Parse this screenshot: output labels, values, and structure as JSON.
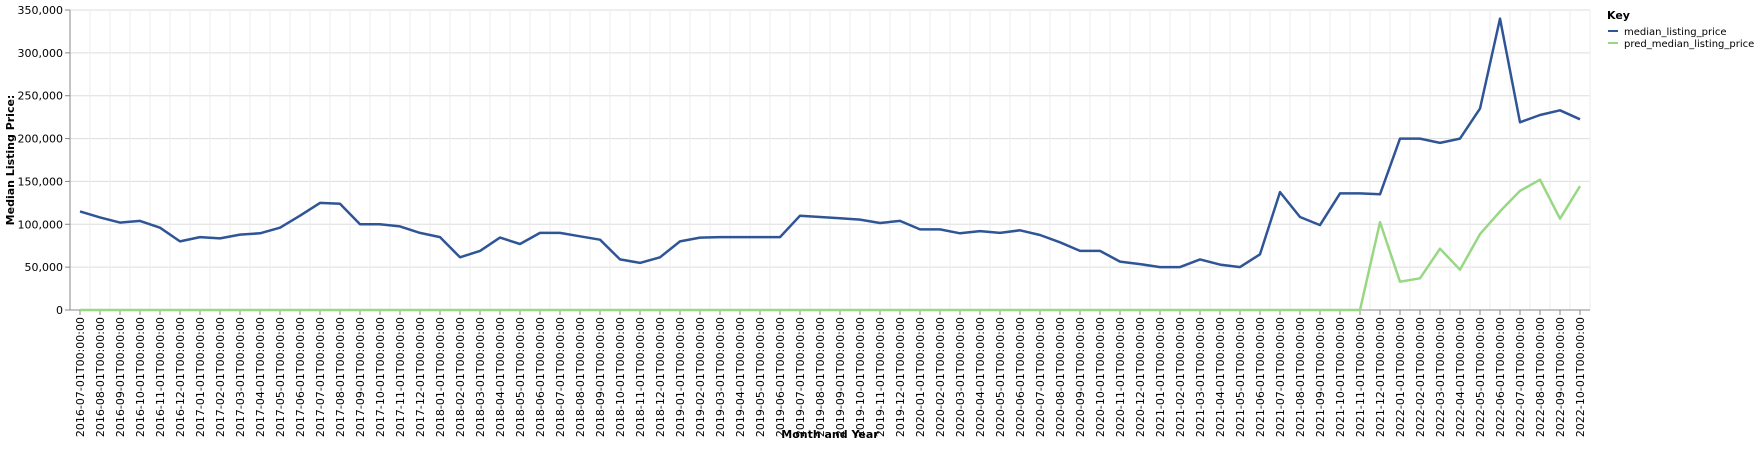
{
  "chart_data": {
    "type": "line",
    "xlabel": "Month and Year",
    "ylabel": "Median Listing Price:",
    "ylim": [
      0,
      350000
    ],
    "yticks": [
      "0",
      "50,000",
      "100,000",
      "150,000",
      "200,000",
      "250,000",
      "300,000",
      "350,000"
    ],
    "grid": true,
    "legend": {
      "title": "Key",
      "position": "top-right"
    },
    "x": [
      "2016-07-01T00:00:00",
      "2016-08-01T00:00:00",
      "2016-09-01T00:00:00",
      "2016-10-01T00:00:00",
      "2016-11-01T00:00:00",
      "2016-12-01T00:00:00",
      "2017-01-01T00:00:00",
      "2017-02-01T00:00:00",
      "2017-03-01T00:00:00",
      "2017-04-01T00:00:00",
      "2017-05-01T00:00:00",
      "2017-06-01T00:00:00",
      "2017-07-01T00:00:00",
      "2017-08-01T00:00:00",
      "2017-09-01T00:00:00",
      "2017-10-01T00:00:00",
      "2017-11-01T00:00:00",
      "2017-12-01T00:00:00",
      "2018-01-01T00:00:00",
      "2018-02-01T00:00:00",
      "2018-03-01T00:00:00",
      "2018-04-01T00:00:00",
      "2018-05-01T00:00:00",
      "2018-06-01T00:00:00",
      "2018-07-01T00:00:00",
      "2018-08-01T00:00:00",
      "2018-09-01T00:00:00",
      "2018-10-01T00:00:00",
      "2018-11-01T00:00:00",
      "2018-12-01T00:00:00",
      "2019-01-01T00:00:00",
      "2019-02-01T00:00:00",
      "2019-03-01T00:00:00",
      "2019-04-01T00:00:00",
      "2019-05-01T00:00:00",
      "2019-06-01T00:00:00",
      "2019-07-01T00:00:00",
      "2019-08-01T00:00:00",
      "2019-09-01T00:00:00",
      "2019-10-01T00:00:00",
      "2019-11-01T00:00:00",
      "2019-12-01T00:00:00",
      "2020-01-01T00:00:00",
      "2020-02-01T00:00:00",
      "2020-03-01T00:00:00",
      "2020-04-01T00:00:00",
      "2020-05-01T00:00:00",
      "2020-06-01T00:00:00",
      "2020-07-01T00:00:00",
      "2020-08-01T00:00:00",
      "2020-09-01T00:00:00",
      "2020-10-01T00:00:00",
      "2020-11-01T00:00:00",
      "2020-12-01T00:00:00",
      "2021-01-01T00:00:00",
      "2021-02-01T00:00:00",
      "2021-03-01T00:00:00",
      "2021-04-01T00:00:00",
      "2021-05-01T00:00:00",
      "2021-06-01T00:00:00",
      "2021-07-01T00:00:00",
      "2021-08-01T00:00:00",
      "2021-09-01T00:00:00",
      "2021-10-01T00:00:00",
      "2021-11-01T00:00:00",
      "2021-12-01T00:00:00",
      "2022-01-01T00:00:00",
      "2022-02-01T00:00:00",
      "2022-03-01T00:00:00",
      "2022-04-01T00:00:00",
      "2022-05-01T00:00:00",
      "2022-06-01T00:00:00",
      "2022-07-01T00:00:00",
      "2022-08-01T00:00:00",
      "2022-09-01T00:00:00",
      "2022-10-01T00:00:00"
    ],
    "series": [
      {
        "name": "median_listing_price",
        "color": "#2f5597",
        "values": [
          115000,
          108000,
          102000,
          104000,
          96000,
          80000,
          85000,
          83500,
          88000,
          89500,
          96000,
          110000,
          125000,
          124000,
          100000,
          100000,
          97500,
          90000,
          85000,
          61500,
          69000,
          84500,
          77000,
          90000,
          90000,
          86000,
          82000,
          59000,
          55000,
          61500,
          80000,
          84500,
          85000,
          85000,
          85000,
          85000,
          110000,
          108500,
          107000,
          105500,
          101500,
          104000,
          94000,
          94000,
          89500,
          92000,
          89900,
          93000,
          87500,
          79000,
          69000,
          69000,
          56500,
          53500,
          50000,
          50000,
          59000,
          53000,
          50000,
          65000,
          137500,
          108500,
          99000,
          136000,
          136000,
          135000,
          200000,
          200000,
          195000,
          200000,
          235000,
          340000,
          219000,
          227500,
          233000,
          222500
        ]
      },
      {
        "name": "pred_median_listing_price",
        "color": "#98d884",
        "values": [
          0,
          0,
          0,
          0,
          0,
          0,
          0,
          0,
          0,
          0,
          0,
          0,
          0,
          0,
          0,
          0,
          0,
          0,
          0,
          0,
          0,
          0,
          0,
          0,
          0,
          0,
          0,
          0,
          0,
          0,
          0,
          0,
          0,
          0,
          0,
          0,
          0,
          0,
          0,
          0,
          0,
          0,
          0,
          0,
          0,
          0,
          0,
          0,
          0,
          0,
          0,
          0,
          0,
          0,
          0,
          0,
          0,
          0,
          0,
          0,
          0,
          0,
          0,
          0,
          0,
          102500,
          33000,
          37000,
          71500,
          47000,
          88500,
          115000,
          139000,
          152000,
          106500,
          144500
        ]
      }
    ]
  }
}
